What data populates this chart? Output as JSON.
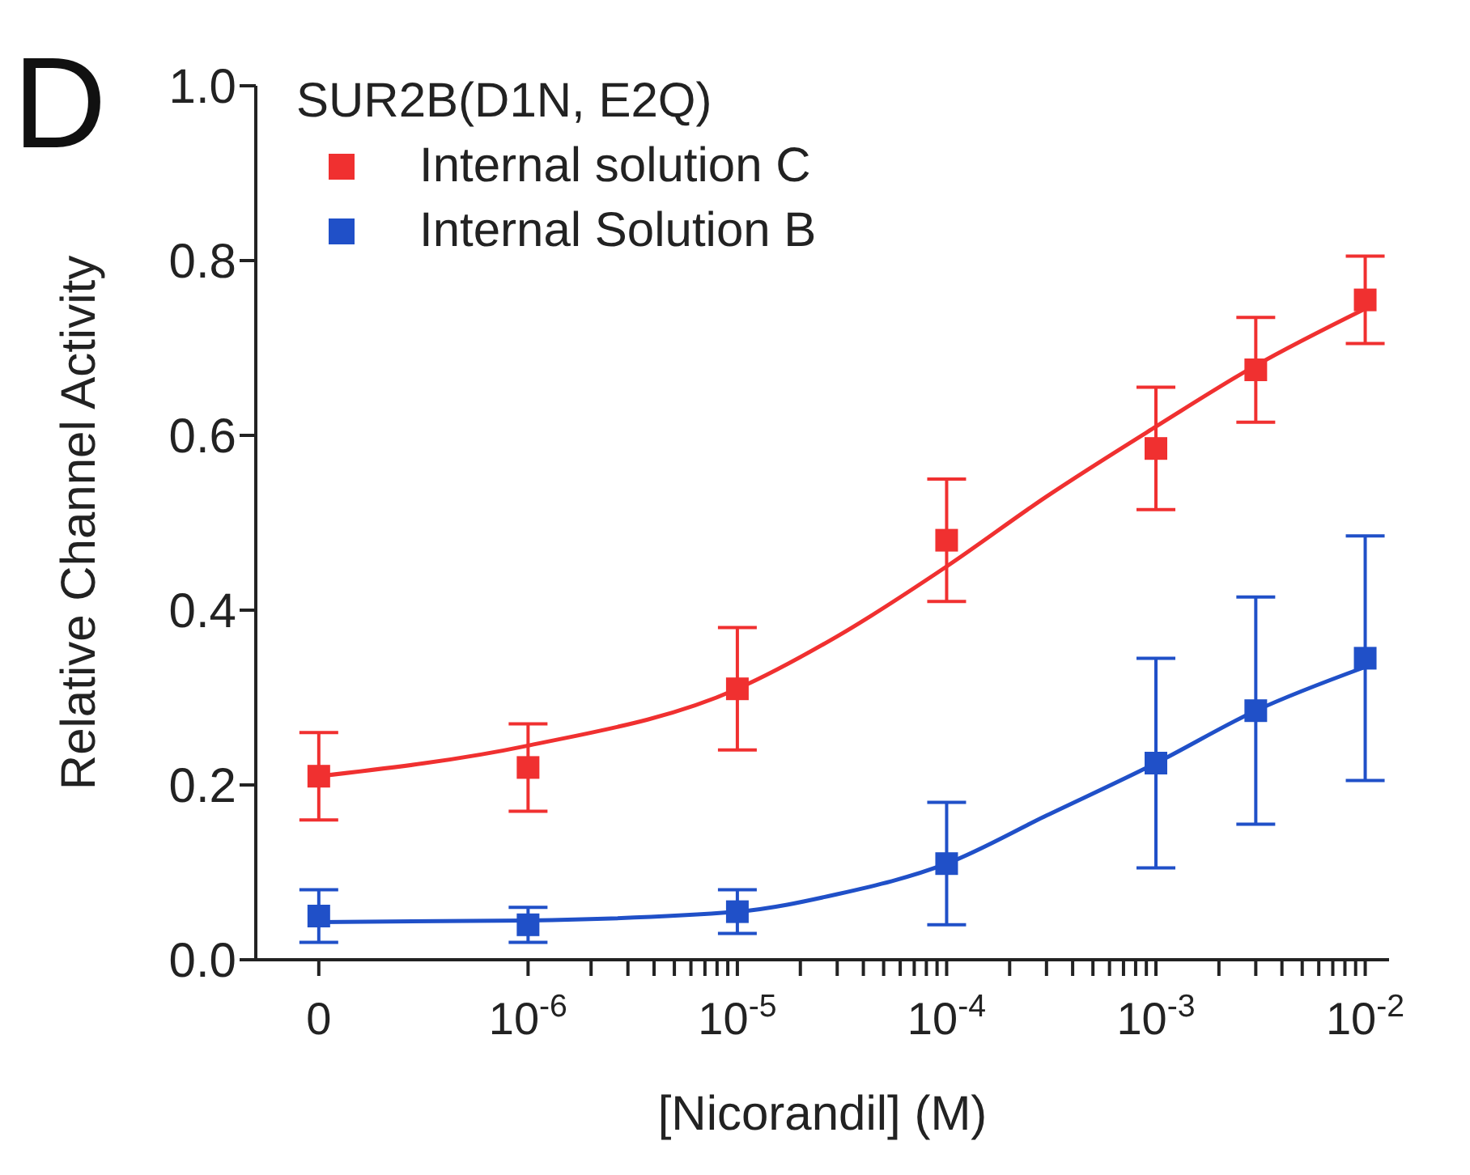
{
  "chart_data": {
    "type": "scatter",
    "log": "x",
    "xlabel": "[Nicorandil] (M)",
    "ylabel": "Relative Channel Activity",
    "legend_title": "SUR2B(D1N, E2Q)",
    "legend": "top left",
    "marker": "square",
    "grid": false,
    "annotations": [
      "D"
    ],
    "xlim": [
      5e-08,
      0.013
    ],
    "ylim": [
      0,
      1
    ],
    "xticks": [
      {
        "value": 1e-07,
        "label": "0"
      },
      {
        "value": 1e-06,
        "label": "10$^{-6}$"
      },
      {
        "value": 2e-06,
        "label": null
      },
      {
        "value": 3e-06,
        "label": null
      },
      {
        "value": 4e-06,
        "label": null
      },
      {
        "value": 5e-06,
        "label": null
      },
      {
        "value": 6e-06,
        "label": null
      },
      {
        "value": 7e-06,
        "label": null
      },
      {
        "value": 8e-06,
        "label": null
      },
      {
        "value": 9e-06,
        "label": null
      },
      {
        "value": 1e-05,
        "label": "10$^{-5}$"
      },
      {
        "value": 2e-05,
        "label": null
      },
      {
        "value": 3e-05,
        "label": null
      },
      {
        "value": 4e-05,
        "label": null
      },
      {
        "value": 5e-05,
        "label": null
      },
      {
        "value": 6e-05,
        "label": null
      },
      {
        "value": 7e-05,
        "label": null
      },
      {
        "value": 8e-05,
        "label": null
      },
      {
        "value": 9e-05,
        "label": null
      },
      {
        "value": 0.0001,
        "label": "10$^{-4}$"
      },
      {
        "value": 0.0002,
        "label": null
      },
      {
        "value": 0.0003,
        "label": null
      },
      {
        "value": 0.0004,
        "label": null
      },
      {
        "value": 0.0005,
        "label": null
      },
      {
        "value": 0.0006,
        "label": null
      },
      {
        "value": 0.0007,
        "label": null
      },
      {
        "value": 0.0008,
        "label": null
      },
      {
        "value": 0.0009,
        "label": null
      },
      {
        "value": 0.001,
        "label": "10$^{-3}$"
      },
      {
        "value": 0.002,
        "label": null
      },
      {
        "value": 0.003,
        "label": null
      },
      {
        "value": 0.004,
        "label": null
      },
      {
        "value": 0.005,
        "label": null
      },
      {
        "value": 0.006,
        "label": null
      },
      {
        "value": 0.007,
        "label": null
      },
      {
        "value": 0.008,
        "label": null
      },
      {
        "value": 0.009,
        "label": null
      },
      {
        "value": 0.01,
        "label": "10$^{-2}$"
      }
    ],
    "yticks": [
      {
        "value": 0,
        "label": "0.0"
      },
      {
        "value": 0.2,
        "label": "0.2"
      },
      {
        "value": 0.4,
        "label": "0.4"
      },
      {
        "value": 0.6,
        "label": "0.6"
      },
      {
        "value": 0.8,
        "label": "0.8"
      },
      {
        "value": 1,
        "label": "1.0"
      }
    ],
    "series": [
      {
        "name": "Internal solution C",
        "color": "#f03030",
        "x": [
          1e-07,
          1e-06,
          1e-05,
          0.0001,
          0.001,
          0.003,
          0.01
        ],
        "values": [
          0.21,
          0.22,
          0.31,
          0.48,
          0.585,
          0.675,
          0.755
        ],
        "errors": [
          0.05,
          0.05,
          0.07,
          0.07,
          0.07,
          0.06,
          0.05
        ]
      },
      {
        "name": "Internal Solution B",
        "color": "#2050c8",
        "x": [
          1e-07,
          1e-06,
          1e-05,
          0.0001,
          0.001,
          0.003,
          0.01
        ],
        "values": [
          0.05,
          0.04,
          0.055,
          0.11,
          0.225,
          0.285,
          0.345
        ],
        "errors": [
          0.03,
          0.02,
          0.025,
          0.07,
          0.12,
          0.13,
          0.14
        ]
      },
      {
        "type": "line",
        "marker": "none",
        "color": "#f03030",
        "x": [
          1e-07,
          1e-06,
          1e-05,
          3e-05,
          0.0001,
          0.0003,
          0.001,
          0.003,
          0.01
        ],
        "values": [
          0.21,
          0.245,
          0.31,
          0.37,
          0.45,
          0.53,
          0.61,
          0.68,
          0.745
        ]
      },
      {
        "type": "line",
        "marker": "none",
        "color": "#2050c8",
        "x": [
          1e-07,
          1e-06,
          1e-05,
          3e-05,
          0.0001,
          0.0003,
          0.001,
          0.003,
          0.01
        ],
        "values": [
          0.043,
          0.045,
          0.055,
          0.075,
          0.11,
          0.165,
          0.225,
          0.285,
          0.335
        ]
      }
    ]
  }
}
